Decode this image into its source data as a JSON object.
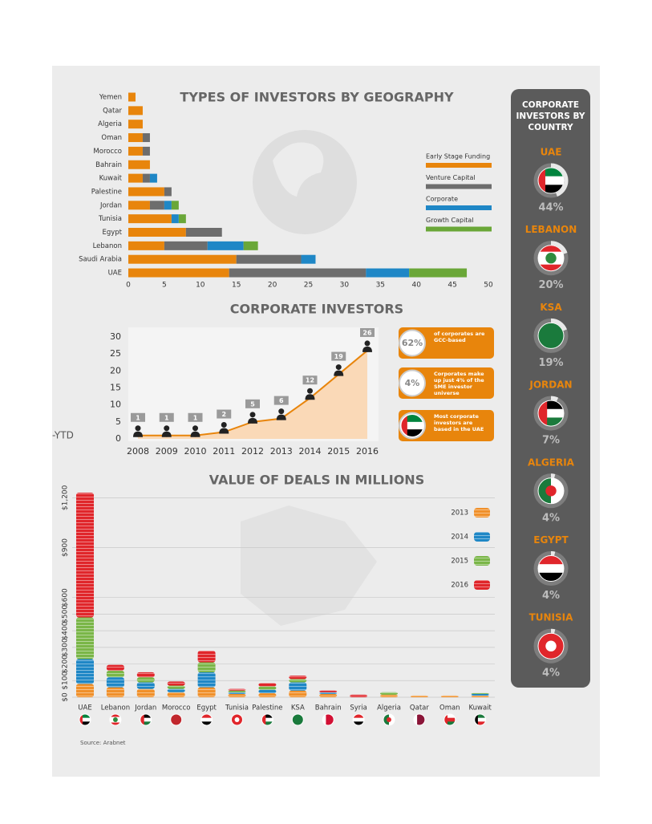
{
  "source": "Source: Arabnet",
  "cropped_text": "-YTD",
  "chart_data": [
    {
      "type": "stacked-bar-horizontal",
      "title": "TYPES OF INVESTORS BY GEOGRAPHY",
      "categories": [
        "Yemen",
        "Qatar",
        "Algeria",
        "Oman",
        "Morocco",
        "Bahrain",
        "Kuwait",
        "Palestine",
        "Jordan",
        "Tunisia",
        "Egypt",
        "Lebanon",
        "Saudi Arabia",
        "UAE"
      ],
      "series": [
        {
          "name": "Early Stage Funding",
          "color": "#e8850c",
          "values": [
            1,
            2,
            2,
            2,
            2,
            3,
            2,
            5,
            3,
            6,
            8,
            5,
            15,
            14
          ]
        },
        {
          "name": "Venture Capital",
          "color": "#6d6d6d",
          "values": [
            0,
            0,
            0,
            1,
            1,
            0,
            1,
            1,
            2,
            0,
            5,
            6,
            9,
            19
          ]
        },
        {
          "name": "Corporate",
          "color": "#1f87c6",
          "values": [
            0,
            0,
            0,
            0,
            0,
            0,
            1,
            0,
            1,
            1,
            0,
            5,
            2,
            6
          ]
        },
        {
          "name": "Growth Capital",
          "color": "#6aa738",
          "values": [
            0,
            0,
            0,
            0,
            0,
            0,
            0,
            0,
            1,
            1,
            0,
            2,
            0,
            8
          ]
        }
      ],
      "xlim": [
        0,
        50
      ],
      "xticks": [
        0,
        5,
        10,
        15,
        20,
        25,
        30,
        35,
        40,
        45,
        50
      ]
    },
    {
      "type": "area-line",
      "title": "CORPORATE INVESTORS",
      "x": [
        2008,
        2009,
        2010,
        2011,
        2012,
        2013,
        2014,
        2015,
        2016
      ],
      "values": [
        1,
        1,
        1,
        2,
        5,
        6,
        12,
        19,
        26
      ],
      "color": "#e8850c",
      "xlim": [
        2008,
        2016
      ],
      "xticks": [
        2008,
        2009,
        2010,
        2011,
        2012,
        2013,
        2014,
        2015,
        2016
      ],
      "ylim": [
        0,
        30
      ],
      "yticks": [
        0,
        5,
        10,
        15,
        20,
        25,
        30
      ],
      "annotations": [
        {
          "label": "62%",
          "text": "of corporates are GCC-based"
        },
        {
          "label": "4%",
          "text": "Corporates make up just 4% of the SME investor universe"
        },
        {
          "text": "Most corporate investors are based in the UAE"
        }
      ]
    },
    {
      "type": "stacked-coins",
      "title": "VALUE OF DEALS IN MILLIONS",
      "categories": [
        "UAE",
        "Lebanon",
        "Jordan",
        "Morocco",
        "Egypt",
        "Tunisia",
        "Palestine",
        "KSA",
        "Bahrain",
        "Syria",
        "Algeria",
        "Qatar",
        "Oman",
        "Kuwait"
      ],
      "series": [
        {
          "name": "2013",
          "color": "#f0902a",
          "values": [
            80,
            60,
            50,
            30,
            60,
            20,
            25,
            40,
            20,
            0,
            15,
            10,
            10,
            10
          ]
        },
        {
          "name": "2014",
          "color": "#1f87c6",
          "values": [
            150,
            60,
            40,
            20,
            90,
            10,
            20,
            50,
            10,
            0,
            0,
            0,
            0,
            10
          ]
        },
        {
          "name": "2015",
          "color": "#7ab648",
          "values": [
            250,
            40,
            30,
            20,
            60,
            10,
            20,
            20,
            0,
            0,
            15,
            0,
            0,
            5
          ]
        },
        {
          "name": "2016",
          "color": "#e0262b",
          "values": [
            750,
            35,
            30,
            25,
            70,
            10,
            20,
            20,
            10,
            15,
            0,
            0,
            0,
            0
          ]
        }
      ],
      "ylim": [
        0,
        1250
      ],
      "yticks": [
        {
          "value": 0,
          "label": "$0"
        },
        {
          "value": 100,
          "label": "$100"
        },
        {
          "value": 200,
          "label": "$200"
        },
        {
          "value": 300,
          "label": "$300"
        },
        {
          "value": 400,
          "label": "$400"
        },
        {
          "value": 500,
          "label": "$500"
        },
        {
          "value": 600,
          "label": "$600"
        },
        {
          "value": 900,
          "label": "$900"
        },
        {
          "value": 1200,
          "label": "$1,200"
        }
      ],
      "grid": true
    },
    {
      "type": "donut-list",
      "title": "CORPORATE INVESTORS BY COUNTRY",
      "categories": [
        "UAE",
        "LEBANON",
        "KSA",
        "JORDAN",
        "ALGERIA",
        "EGYPT",
        "TUNISIA"
      ],
      "values": [
        44,
        20,
        19,
        7,
        4,
        4,
        4
      ],
      "value_labels": [
        "44%",
        "20%",
        "19%",
        "7%",
        "4%",
        "4%",
        "4%"
      ],
      "color": "#e8e8e8"
    }
  ]
}
